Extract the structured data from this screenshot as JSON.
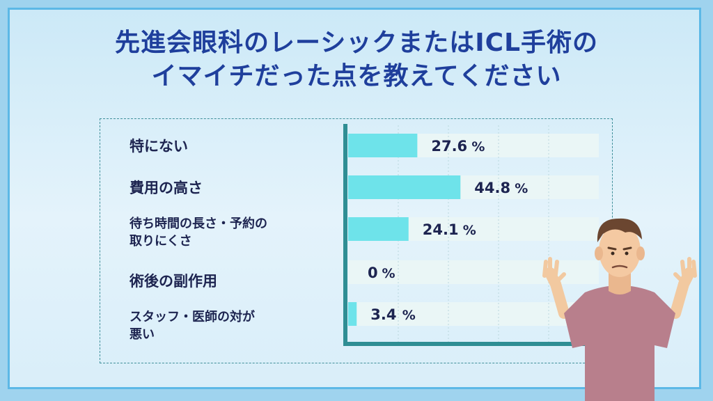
{
  "chart_data": {
    "type": "bar",
    "orientation": "horizontal",
    "title_lines": [
      "先進会眼科のレーシックまたはICL手術の",
      "イマイチだった点を教えてください"
    ],
    "categories": [
      "特にない",
      "費用の高さ",
      "待ち時間の長さ・予約の取りにくさ",
      "術後の副作用",
      "スタッフ・医師の対が悪い"
    ],
    "category_lines": [
      [
        "特にない"
      ],
      [
        "費用の高さ"
      ],
      [
        "待ち時間の長さ・予約の",
        "取りにくさ"
      ],
      [
        "術後の副作用"
      ],
      [
        "スタッフ・医師の対が",
        "悪い"
      ]
    ],
    "values": [
      27.6,
      44.8,
      24.1,
      0,
      3.4
    ],
    "value_labels": [
      "27.6",
      "44.8",
      "24.1",
      "0",
      "3.4"
    ],
    "unit": "%",
    "xlim": [
      0,
      100
    ],
    "grid": true,
    "bar_color": "#6ee3ea",
    "track_color": "#eaf6f6",
    "axis_color": "#2f8e94"
  },
  "colors": {
    "title": "#1f3f9c",
    "background": "#d6edf8",
    "border": "#5cb8e6"
  },
  "illustration": "shrugging-man-icon"
}
